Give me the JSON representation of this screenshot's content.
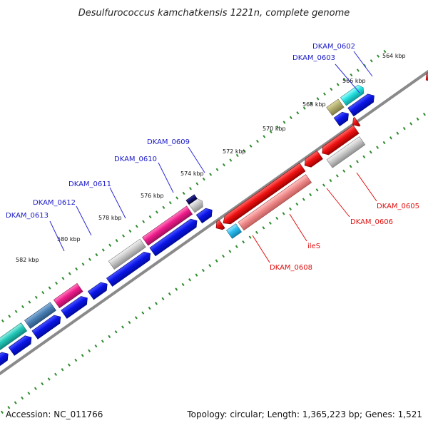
{
  "title": "Desulfurococcus kamchatkensis 1221n, complete genome",
  "footer": {
    "accession": "Accession: NC_011766",
    "summary": "Topology: circular; Length: 1,365,223 bp; Genes: 1,521"
  },
  "colors": {
    "backbone": "#8a8a8a",
    "tick_major": "#2e8b2e",
    "label_forward": "#1a1ac8",
    "label_reverse": "#e01010",
    "cds_forward": "#0a14e6",
    "cds_reverse": "#ee1111"
  },
  "ticks": [
    "564 kbp",
    "566 kbp",
    "568 kbp",
    "570 kbp",
    "572 kbp",
    "574 kbp",
    "576 kbp",
    "578 kbp",
    "580 kbp",
    "582 kbp"
  ],
  "genes_forward_labels": [
    "DKAM_0602",
    "DKAM_0603",
    "DKAM_0609",
    "DKAM_0610",
    "DKAM_0611",
    "DKAM_0612",
    "DKAM_0613"
  ],
  "genes_reverse_labels": [
    "DKAM_0605",
    "DKAM_0606",
    "ileS",
    "DKAM_0608"
  ]
}
